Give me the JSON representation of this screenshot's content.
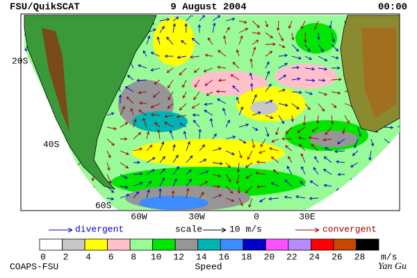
{
  "header": {
    "left": "FSU/QuikSCAT",
    "center": "9 August 2004",
    "right": "00:00"
  },
  "map": {
    "lat_labels": [
      "20S",
      "40S",
      "60S"
    ],
    "lon_labels": [
      "60W",
      "30W",
      "0",
      "30E"
    ]
  },
  "legend": {
    "divergent": "divergent",
    "scale": "scale",
    "scale_value": "10 m/s",
    "convergent": "convergent"
  },
  "colorbar": {
    "ticks": [
      0,
      2,
      4,
      6,
      8,
      10,
      12,
      14,
      16,
      18,
      20,
      22,
      24,
      26,
      28
    ],
    "unit": "m/s",
    "title": "Speed",
    "colors": [
      "#ffffff",
      "#c8c8c8",
      "#ffff00",
      "#ffc0cb",
      "#98fb98",
      "#00e600",
      "#969696",
      "#00b4b4",
      "#3c8cff",
      "#0000c8",
      "#ff50ff",
      "#b48cff",
      "#ff0000",
      "#c84600",
      "#000000"
    ]
  },
  "footer": {
    "left": "COAPS-FSU",
    "right": "Yan Gu"
  }
}
